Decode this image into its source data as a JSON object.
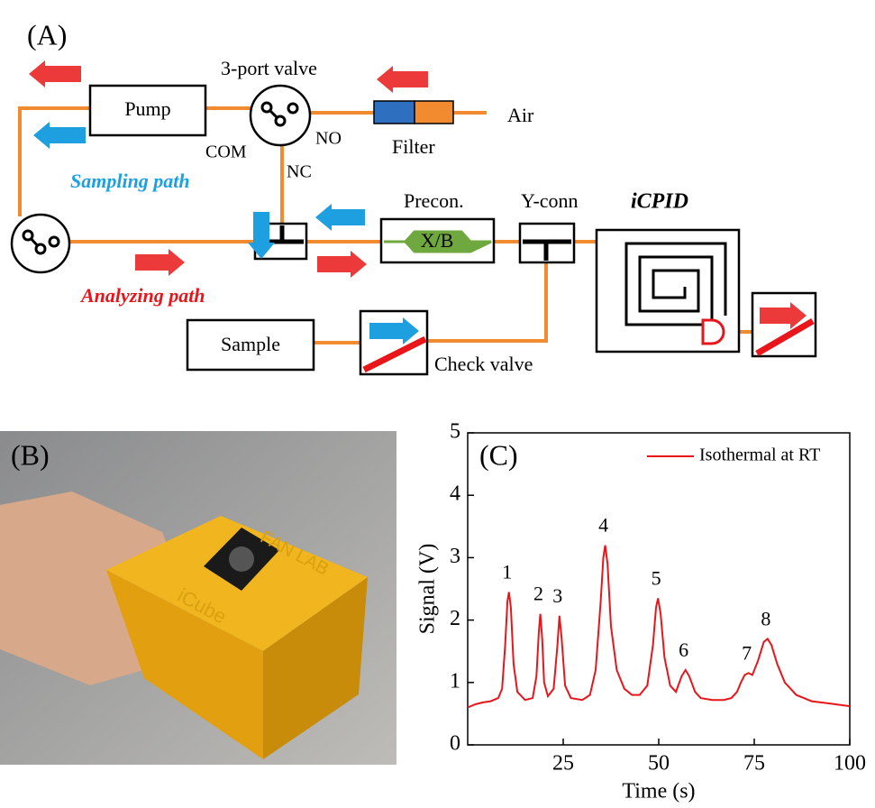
{
  "diagram": {
    "panel_label": "(A)",
    "valve_label": "3-port valve",
    "pump": "Pump",
    "com": "COM",
    "no": "NO",
    "nc": "NC",
    "filter": "Filter",
    "air": "Air",
    "sampling_path": "Sampling path",
    "precon": "Precon.",
    "xb": "X/B",
    "yconn": "Y-conn",
    "icpid": "iCPID",
    "analyzing_path": "Analyzing path",
    "sample": "Sample",
    "check_valve": "Check valve"
  },
  "photo": {
    "panel_label": "(B)",
    "box_text_1": "FAN LAB",
    "box_text_2": "iCube"
  },
  "chart_data": {
    "type": "line",
    "panel_label": "(C)",
    "x_label": "Time (s)",
    "y_label": "Signal (V)",
    "xlim": [
      0,
      100
    ],
    "xticks": [
      25,
      50,
      75,
      100
    ],
    "ylim": [
      0,
      5
    ],
    "yticks": [
      0,
      1,
      2,
      3,
      4,
      5
    ],
    "legend": "upper right",
    "x": [
      0,
      2,
      4,
      6,
      8,
      9,
      9.8,
      10.4,
      10.8,
      11.3,
      12,
      13,
      15,
      17,
      18,
      18.6,
      19,
      19.5,
      20,
      21,
      22.5,
      23.5,
      24,
      24.6,
      25.5,
      27,
      30,
      32,
      33.5,
      34.8,
      35.5,
      36,
      36.6,
      37.5,
      39,
      41,
      43,
      45,
      47,
      48.5,
      49.3,
      49.8,
      50.5,
      51.5,
      53,
      54.5,
      56,
      57,
      58,
      59.5,
      61,
      64,
      67,
      69,
      70.5,
      71.5,
      72.5,
      73.5,
      74.5,
      76,
      77.5,
      78.5,
      79.5,
      81,
      83,
      86,
      90,
      95,
      100
    ],
    "series": [
      {
        "name": "Isothermal at RT",
        "color": "#e8161b",
        "values": [
          0.6,
          0.65,
          0.68,
          0.7,
          0.75,
          0.9,
          1.6,
          2.3,
          2.45,
          2.2,
          1.3,
          0.85,
          0.72,
          0.75,
          1.1,
          1.8,
          2.1,
          1.7,
          1.0,
          0.78,
          0.9,
          1.6,
          2.07,
          1.7,
          0.95,
          0.75,
          0.72,
          0.8,
          1.2,
          2.3,
          3.0,
          3.2,
          2.9,
          1.9,
          1.2,
          0.9,
          0.8,
          0.8,
          0.95,
          1.6,
          2.2,
          2.35,
          2.1,
          1.4,
          0.95,
          0.85,
          1.1,
          1.2,
          1.1,
          0.85,
          0.75,
          0.72,
          0.72,
          0.75,
          0.85,
          1.0,
          1.12,
          1.15,
          1.12,
          1.35,
          1.65,
          1.7,
          1.6,
          1.3,
          1.0,
          0.8,
          0.7,
          0.66,
          0.62
        ]
      }
    ],
    "annotations": [
      {
        "text": "1",
        "x": 10.8,
        "y": 2.45
      },
      {
        "text": "2",
        "x": 19,
        "y": 2.1
      },
      {
        "text": "3",
        "x": 24,
        "y": 2.07
      },
      {
        "text": "4",
        "x": 36,
        "y": 3.2
      },
      {
        "text": "5",
        "x": 49.8,
        "y": 2.35
      },
      {
        "text": "6",
        "x": 57,
        "y": 1.2
      },
      {
        "text": "7",
        "x": 73.5,
        "y": 1.15
      },
      {
        "text": "8",
        "x": 78.5,
        "y": 1.7
      }
    ]
  }
}
